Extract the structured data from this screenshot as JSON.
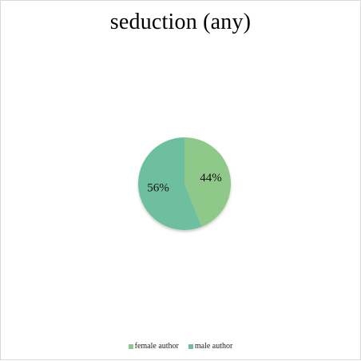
{
  "chart_data": {
    "type": "pie",
    "title": "seduction (any)",
    "categories": [
      "female author",
      "male author"
    ],
    "values": [
      44,
      56
    ],
    "data_labels": [
      "44%",
      "56%"
    ],
    "colors": [
      "#8ec98a",
      "#6dbf9f"
    ],
    "legend_position": "bottom"
  }
}
